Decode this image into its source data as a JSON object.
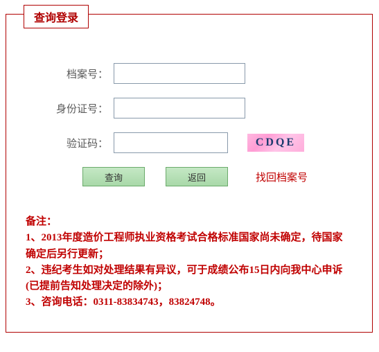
{
  "legend": "查询登录",
  "form": {
    "archive_label": "档案号：",
    "id_label": "身份证号：",
    "captcha_label": "验证码：",
    "archive_value": "",
    "id_value": "",
    "captcha_value": "",
    "captcha_text": "CDQE"
  },
  "buttons": {
    "query": "查询",
    "back": "返回",
    "find_archive": "找回档案号"
  },
  "notes": {
    "title": "备注：",
    "item1": "1、2013年度造价工程师执业资格考试合格标准国家尚未确定，待国家确定后另行更新；",
    "item2": "2、违纪考生如对处理结果有异议，可于成绩公布15日内向我中心申诉(已提前告知处理决定的除外)；",
    "item3": "3、咨询电话：0311-83834743，83824748。"
  },
  "colors": {
    "border": "#b00000",
    "label_text": "#5a5a5a",
    "button_bg_top": "#c5e8c5",
    "button_bg_bottom": "#a8d8a8",
    "button_border": "#6aaa6a",
    "link_text": "#c00000",
    "notes_text": "#c00000",
    "captcha_bg": "#ffb8e0",
    "captcha_text": "#1a3a6e"
  }
}
